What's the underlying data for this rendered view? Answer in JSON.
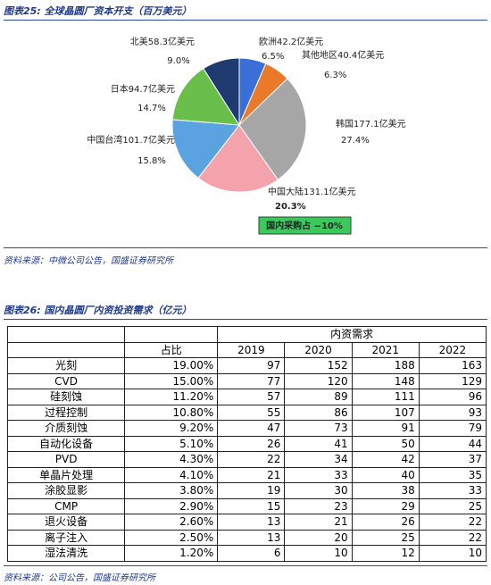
{
  "chart_data": {
    "type": "pie",
    "title": "图表25: 全球晶圆厂资本开支（百万美元）",
    "categories": [
      "欧洲42.2亿美元",
      "其他地区40.4亿美元",
      "韩国177.1亿美元",
      "中国大陆131.1亿美元",
      "中国台湾101.7亿美元",
      "日本94.7亿美元",
      "北美58.3亿美元"
    ],
    "values": [
      6.5,
      6.3,
      27.4,
      20.3,
      15.8,
      14.7,
      9.0
    ],
    "value_labels": [
      "6.5%",
      "6.3%",
      "27.4%",
      "20.3%",
      "15.8%",
      "14.7%",
      "9.0%"
    ],
    "colors": [
      "#3a6fd8",
      "#ea7a2a",
      "#a6a6a6",
      "#f4a3ac",
      "#5ba3e0",
      "#6abf4b",
      "#1f3a6e"
    ],
    "annotation": "国内采购占 ~10%"
  },
  "source1": "资料来源：中微公司公告，国盛证券研究所",
  "table": {
    "title": "图表26: 国内晶圆厂内资投资需求（亿元）",
    "group_header": "内资需求",
    "columns": [
      "占比",
      "2019",
      "2020",
      "2021",
      "2022"
    ],
    "rows": [
      [
        "光刻",
        "19.00%",
        97,
        152,
        188,
        163
      ],
      [
        "CVD",
        "15.00%",
        77,
        120,
        148,
        129
      ],
      [
        "硅刻蚀",
        "11.20%",
        57,
        89,
        111,
        96
      ],
      [
        "过程控制",
        "10.80%",
        55,
        86,
        107,
        93
      ],
      [
        "介质刻蚀",
        "9.20%",
        47,
        73,
        91,
        79
      ],
      [
        "自动化设备",
        "5.10%",
        26,
        41,
        50,
        44
      ],
      [
        "PVD",
        "4.30%",
        22,
        34,
        42,
        37
      ],
      [
        "单晶片处理",
        "4.10%",
        21,
        33,
        40,
        35
      ],
      [
        "涂胶显影",
        "3.80%",
        19,
        30,
        38,
        33
      ],
      [
        "CMP",
        "2.90%",
        15,
        23,
        29,
        25
      ],
      [
        "退火设备",
        "2.60%",
        13,
        21,
        26,
        22
      ],
      [
        "离子注入",
        "2.50%",
        13,
        20,
        25,
        22
      ],
      [
        "湿法清洗",
        "1.20%",
        6,
        10,
        12,
        10
      ]
    ]
  },
  "source2": "资料来源：公司公告，国盛证券研究所"
}
